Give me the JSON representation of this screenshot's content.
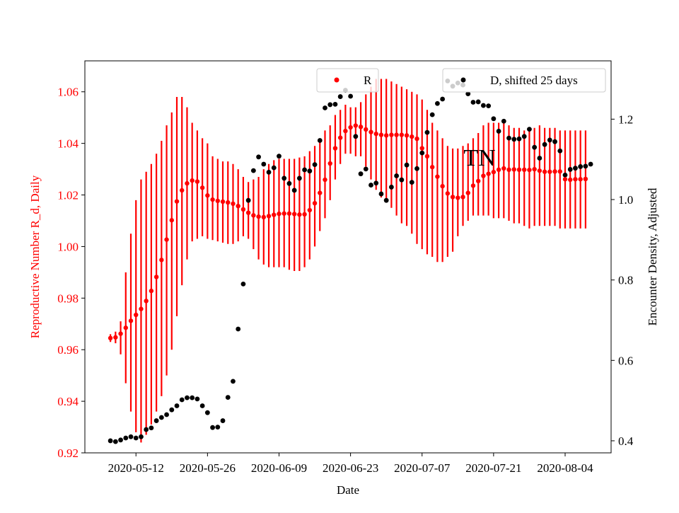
{
  "chart_data": {
    "type": "scatter",
    "title": "",
    "annotation": "TN",
    "xlabel": "Date",
    "ylabel_left": "Reproductive Number R_d, Daily",
    "ylabel_right": "Encounter Density, Adjusted",
    "x_start": "2020-05-07",
    "x_tick_labels": [
      "2020-05-12",
      "2020-05-26",
      "2020-06-09",
      "2020-06-23",
      "2020-07-07",
      "2020-07-21",
      "2020-08-04"
    ],
    "x_range": [
      "2020-05-02",
      "2020-08-13"
    ],
    "ylim_left": [
      0.92,
      1.072
    ],
    "ylim_right": [
      0.37,
      1.345
    ],
    "yticks_left": [
      "0.92",
      "0.94",
      "0.96",
      "0.98",
      "1.00",
      "1.02",
      "1.04",
      "1.06"
    ],
    "yticks_right": [
      "0.4",
      "0.6",
      "0.8",
      "1.0",
      "1.2"
    ],
    "colors": {
      "R": "#ff0000",
      "D": "#000000",
      "axes": "#000000"
    },
    "legend": [
      {
        "label": "R",
        "color": "#ff0000",
        "placement": "top-center"
      },
      {
        "label": "D, shifted 25 days",
        "color": "#000000",
        "placement": "top-right"
      }
    ],
    "series": [
      {
        "name": "R",
        "axis": "left",
        "values": [
          0.9645,
          0.9648,
          0.9662,
          0.9685,
          0.9712,
          0.9735,
          0.9758,
          0.9789,
          0.9828,
          0.9882,
          0.9948,
          1.0027,
          1.0102,
          1.0175,
          1.0218,
          1.0245,
          1.0256,
          1.0252,
          1.0228,
          1.0198,
          1.0182,
          1.0177,
          1.0174,
          1.0171,
          1.0166,
          1.0157,
          1.0144,
          1.0131,
          1.0121,
          1.0116,
          1.0114,
          1.0118,
          1.0123,
          1.0127,
          1.0128,
          1.0128,
          1.0126,
          1.0124,
          1.0125,
          1.0141,
          1.0168,
          1.0208,
          1.0259,
          1.0322,
          1.0381,
          1.0422,
          1.0448,
          1.0462,
          1.0469,
          1.0464,
          1.0454,
          1.0444,
          1.0437,
          1.0433,
          1.0431,
          1.0433,
          1.0433,
          1.0433,
          1.0431,
          1.0426,
          1.0418,
          1.0381,
          1.035,
          1.0308,
          1.0271,
          1.0234,
          1.0206,
          1.0192,
          1.0189,
          1.0192,
          1.0208,
          1.0236,
          1.0254,
          1.0274,
          1.0282,
          1.0289,
          1.0298,
          1.0303,
          1.0298,
          1.0299,
          1.0298,
          1.0298,
          1.0297,
          1.03,
          1.0294,
          1.029,
          1.029,
          1.0291,
          1.0291,
          1.0261,
          1.0259,
          1.0261,
          1.0261,
          1.0262
        ],
        "lower": [
          0.963,
          0.9625,
          0.9582,
          0.947,
          0.936,
          0.928,
          0.924,
          0.927,
          0.931,
          0.936,
          0.942,
          0.95,
          0.96,
          0.973,
          0.985,
          0.995,
          1.002,
          1.003,
          1.004,
          1.003,
          1.0025,
          1.002,
          1.0015,
          1.001,
          1.001,
          1.002,
          1.004,
          1.003,
          0.999,
          0.995,
          0.993,
          0.992,
          0.992,
          0.992,
          0.992,
          0.991,
          0.9905,
          0.9905,
          0.992,
          0.995,
          1.0,
          1.006,
          1.011,
          1.018,
          1.026,
          1.032,
          1.036,
          1.036,
          1.035,
          1.035,
          1.031,
          1.026,
          1.022,
          1.019,
          1.017,
          1.015,
          1.012,
          1.009,
          1.008,
          1.005,
          1.001,
          0.999,
          0.997,
          0.996,
          0.994,
          0.994,
          0.996,
          0.998,
          1.004,
          1.008,
          1.01,
          1.012,
          1.012,
          1.012,
          1.012,
          1.011,
          1.011,
          1.011,
          1.01,
          1.009,
          1.009,
          1.008,
          1.007,
          1.008,
          1.008,
          1.008,
          1.008,
          1.008,
          1.007,
          1.007,
          1.007,
          1.007,
          1.007,
          1.007
        ],
        "upper": [
          0.966,
          0.967,
          0.971,
          0.99,
          1.005,
          1.018,
          1.026,
          1.029,
          1.032,
          1.036,
          1.041,
          1.047,
          1.052,
          1.058,
          1.058,
          1.054,
          1.048,
          1.045,
          1.042,
          1.04,
          1.035,
          1.034,
          1.033,
          1.033,
          1.032,
          1.03,
          1.027,
          1.025,
          1.026,
          1.027,
          1.03,
          1.032,
          1.0335,
          1.034,
          1.034,
          1.034,
          1.034,
          1.0345,
          1.035,
          1.037,
          1.039,
          1.042,
          1.045,
          1.047,
          1.051,
          1.053,
          1.055,
          1.054,
          1.054,
          1.056,
          1.059,
          1.062,
          1.065,
          1.065,
          1.065,
          1.064,
          1.063,
          1.062,
          1.061,
          1.06,
          1.059,
          1.057,
          1.053,
          1.048,
          1.045,
          1.042,
          1.039,
          1.038,
          1.038,
          1.039,
          1.04,
          1.042,
          1.044,
          1.047,
          1.048,
          1.048,
          1.048,
          1.048,
          1.047,
          1.046,
          1.046,
          1.045,
          1.045,
          1.046,
          1.047,
          1.046,
          1.046,
          1.046,
          1.045,
          1.045,
          1.045,
          1.045,
          1.045,
          1.045
        ]
      },
      {
        "name": "D, shifted 25 days",
        "axis": "right",
        "values": [
          0.4,
          0.398,
          0.402,
          0.407,
          0.41,
          0.407,
          0.41,
          0.428,
          0.432,
          0.45,
          0.458,
          0.465,
          0.477,
          0.487,
          0.502,
          0.507,
          0.507,
          0.504,
          0.487,
          0.47,
          0.433,
          0.434,
          0.45,
          0.508,
          0.548,
          0.678,
          0.79,
          0.998,
          1.072,
          1.106,
          1.088,
          1.068,
          1.079,
          1.108,
          1.053,
          1.04,
          1.023,
          1.053,
          1.074,
          1.071,
          1.087,
          1.147,
          1.228,
          1.236,
          1.237,
          1.256,
          1.272,
          1.257,
          1.157,
          1.064,
          1.076,
          1.036,
          1.041,
          1.014,
          0.998,
          1.031,
          1.059,
          1.049,
          1.086,
          1.043,
          1.077,
          1.116,
          1.167,
          1.211,
          1.239,
          1.25,
          1.295,
          1.282,
          1.29,
          1.285,
          1.263,
          1.242,
          1.243,
          1.234,
          1.233,
          1.201,
          1.17,
          1.195,
          1.153,
          1.15,
          1.151,
          1.157,
          1.175,
          1.13,
          1.103,
          1.137,
          1.148,
          1.144,
          1.121,
          1.061,
          1.075,
          1.078,
          1.082,
          1.083,
          1.088
        ]
      }
    ]
  }
}
